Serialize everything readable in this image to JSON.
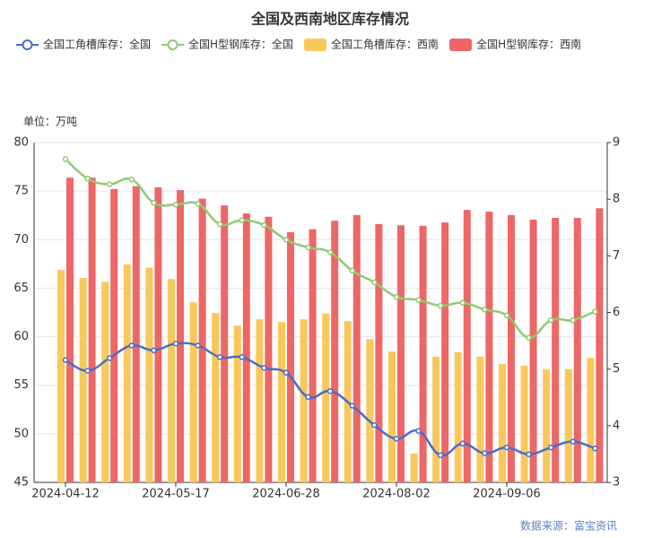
{
  "chart_data": {
    "type": "bar-line",
    "title": "全国及西南地区库存情况",
    "y_axis_label": "单位：万吨",
    "source": "数据来源：富宝资讯",
    "categories": [
      "2024-04-12",
      null,
      null,
      null,
      null,
      "2024-05-17",
      null,
      null,
      null,
      null,
      "2024-06-28",
      null,
      null,
      null,
      null,
      "2024-08-02",
      null,
      null,
      null,
      null,
      "2024-09-06",
      null,
      null,
      null,
      null
    ],
    "ylim": [
      45,
      80
    ],
    "yticks": [
      45,
      50,
      55,
      60,
      65,
      70,
      75,
      80
    ],
    "y2lim": [
      3,
      9
    ],
    "y2ticks": [
      3,
      4,
      5,
      6,
      7,
      8,
      9
    ],
    "grid": true,
    "series": [
      {
        "name": "全国工角槽库存：全国",
        "type": "line",
        "color": "#4a6cc9",
        "values": [
          57.6,
          56.5,
          57.8,
          59.1,
          58.6,
          59.3,
          59.1,
          57.9,
          57.9,
          56.8,
          56.3,
          53.8,
          54.4,
          52.9,
          50.9,
          49.5,
          50.3,
          47.8,
          49.0,
          48.0,
          48.6,
          47.9,
          48.6,
          49.2,
          48.5
        ]
      },
      {
        "name": "全国H型钢库存：全国",
        "type": "line",
        "color": "#8fca72",
        "values": [
          78.3,
          76.3,
          75.7,
          76.2,
          73.8,
          73.6,
          73.7,
          71.6,
          72.0,
          71.5,
          70.0,
          69.2,
          68.7,
          66.8,
          65.6,
          64.1,
          63.8,
          63.2,
          63.5,
          62.8,
          62.2,
          59.9,
          61.7,
          61.7,
          62.6
        ]
      },
      {
        "name": "全国工角槽库存：西南",
        "type": "bar",
        "axis": "y2",
        "color": "#f9c85b",
        "values": [
          6.75,
          6.61,
          6.54,
          6.85,
          6.79,
          6.59,
          6.18,
          5.99,
          5.77,
          5.88,
          5.83,
          5.88,
          5.98,
          5.85,
          5.53,
          5.31,
          3.51,
          5.22,
          5.3,
          5.22,
          5.09,
          5.06,
          5.0,
          5.0,
          5.2
        ]
      },
      {
        "name": "全国H型钢库存：西南",
        "type": "bar",
        "axis": "y2",
        "color": "#ee6666",
        "values": [
          8.38,
          8.38,
          8.18,
          8.23,
          8.21,
          8.16,
          8.01,
          7.89,
          7.75,
          7.69,
          7.42,
          7.47,
          7.62,
          7.72,
          7.56,
          7.54,
          7.53,
          7.59,
          7.81,
          7.78,
          7.72,
          7.64,
          7.67,
          7.67,
          7.84
        ]
      }
    ]
  }
}
